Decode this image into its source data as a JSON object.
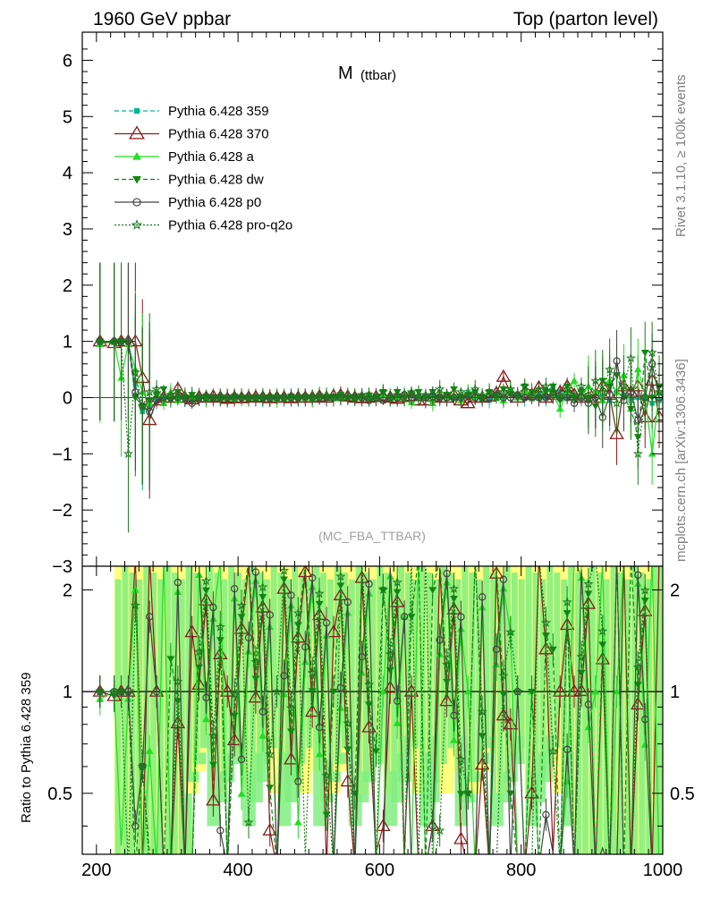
{
  "header": {
    "left": "1960 GeV ppbar",
    "right": "Top (parton level)"
  },
  "side_labels": {
    "rivet": "Rivet 3.1.10, ≥ 100k events",
    "mcplots": "mcplots.cern.ch [arXiv:1306.3436]"
  },
  "chart_data": {
    "type": "line",
    "title": "M",
    "title_sub": "(ttbar)",
    "analysis": "(MC_FBA_TTBAR)",
    "ratio_ylabel": "Ratio to Pythia 6.428 359",
    "xlim": [
      180,
      1000
    ],
    "ylim": [
      -3,
      6.5
    ],
    "ratio_ylim": [
      0.33,
      2.35
    ],
    "x_ticks": [
      "200",
      "400",
      "600",
      "800",
      "1000"
    ],
    "y_ticks": [
      "−3",
      "−2",
      "−1",
      "0",
      "1",
      "2",
      "3",
      "4",
      "5",
      "6"
    ],
    "ratio_ticks": [
      "0.5",
      "1",
      "2"
    ],
    "colors": {
      "359": "#00b894",
      "370": "#8b1a1a",
      "a": "#22dd22",
      "dw": "#118811",
      "p0": "#444444",
      "pro_q2o": "#1a7a1a",
      "band_yellow": "#ffff80",
      "band_green": "#80ee80"
    },
    "series": [
      {
        "name": "Pythia 6.428 359",
        "x": [
          205,
          225,
          235,
          245,
          255,
          265,
          275,
          285,
          295,
          305,
          315,
          325,
          335,
          345,
          355,
          365,
          375,
          385,
          395,
          405,
          415,
          425,
          435,
          445,
          455,
          465,
          475,
          485,
          495,
          505,
          515,
          525,
          535,
          545,
          555,
          565,
          575,
          585,
          595,
          605,
          615,
          625,
          635,
          645,
          655,
          665,
          675,
          685,
          695,
          705,
          715,
          725,
          735,
          745,
          755,
          765,
          775,
          785,
          795,
          805,
          815,
          825,
          835,
          845,
          855,
          865,
          875,
          885,
          895,
          905,
          915,
          925,
          935,
          945,
          955,
          965,
          975,
          985,
          995
        ],
        "y": [
          1.0,
          1.0,
          1.0,
          1.0,
          0.25,
          -0.25,
          -0.15,
          -0.05,
          -0.02,
          -0.04,
          0.0,
          -0.05,
          -0.02,
          0.0,
          -0.01,
          0.0,
          -0.01,
          -0.02,
          0.0,
          0.0,
          0.0,
          0.01,
          -0.01,
          0.0,
          0.02,
          -0.01,
          0.0,
          0.0,
          0.0,
          0.01,
          0.0,
          0.01,
          0.02,
          0.0,
          0.0,
          0.02,
          0.0,
          0.0,
          0.03,
          0.05,
          0.0,
          0.0,
          0.03,
          0.03,
          0.02,
          0.02,
          0.05,
          0.0,
          0.0,
          0.0,
          0.0,
          0.1,
          0.02,
          0.0,
          -0.05,
          0.0,
          0.0,
          0.1,
          0.05,
          -0.02,
          0.1,
          0.05,
          0.0,
          0.15,
          0.1,
          0.0,
          0.05,
          0.0,
          0.0,
          0.1,
          0.0,
          -0.05,
          0.1,
          0.05,
          -0.05,
          0.0,
          0.0,
          -0.1,
          -0.05
        ]
      },
      {
        "name": "Pythia 6.428 370",
        "x": [
          205,
          225,
          235,
          245,
          255,
          265,
          275,
          285,
          295,
          305,
          315,
          325,
          335,
          345,
          355,
          365,
          375,
          385,
          395,
          405,
          415,
          425,
          435,
          445,
          455,
          465,
          475,
          485,
          495,
          505,
          515,
          525,
          535,
          545,
          555,
          565,
          575,
          585,
          595,
          605,
          615,
          625,
          635,
          645,
          655,
          665,
          675,
          685,
          695,
          705,
          715,
          725,
          735,
          745,
          755,
          765,
          775,
          785,
          795,
          805,
          815,
          825,
          835,
          845,
          855,
          865,
          875,
          885,
          895,
          905,
          915,
          925,
          935,
          945,
          955,
          965,
          975,
          985,
          995
        ],
        "y": [
          1.0,
          0.97,
          1.0,
          1.0,
          1.0,
          0.35,
          -0.4,
          -0.05,
          0.0,
          0.0,
          0.15,
          0.0,
          -0.03,
          0.01,
          0.0,
          0.02,
          0.0,
          -0.02,
          0.0,
          -0.01,
          0.0,
          0.01,
          0.0,
          -0.01,
          0.0,
          0.0,
          -0.01,
          0.0,
          0.0,
          0.0,
          0.02,
          0.0,
          0.03,
          0.04,
          0.02,
          0.0,
          -0.01,
          0.0,
          0.01,
          0.02,
          0.0,
          -0.02,
          0.01,
          0.03,
          -0.05,
          -0.05,
          0.02,
          0.0,
          0.0,
          0.05,
          -0.05,
          -0.1,
          0.0,
          0.0,
          0.02,
          0.08,
          0.37,
          0.08,
          0.0,
          0.05,
          0.05,
          0.18,
          0.0,
          0.05,
          0.1,
          0.2,
          0.05,
          0.0,
          0.1,
          0.0,
          0.2,
          0.05,
          -0.65,
          0.2,
          0.1,
          0.2,
          -0.35,
          0.3,
          -0.35
        ]
      },
      {
        "name": "Pythia 6.428 a",
        "x": [
          205,
          225,
          235,
          245,
          255,
          265,
          275,
          285,
          295,
          305,
          315,
          325,
          335,
          345,
          355,
          365,
          375,
          385,
          395,
          405,
          415,
          425,
          435,
          445,
          455,
          465,
          475,
          485,
          495,
          505,
          515,
          525,
          535,
          545,
          555,
          565,
          575,
          585,
          595,
          605,
          615,
          625,
          635,
          645,
          655,
          665,
          675,
          685,
          695,
          705,
          715,
          725,
          735,
          745,
          755,
          765,
          775,
          785,
          795,
          805,
          815,
          825,
          835,
          845,
          855,
          865,
          875,
          885,
          895,
          905,
          915,
          925,
          935,
          945,
          955,
          965,
          975,
          985,
          995
        ],
        "y": [
          0.95,
          1.0,
          0.35,
          0.95,
          0.5,
          0.1,
          -0.1,
          0.1,
          -0.1,
          0.1,
          -0.05,
          0.05,
          0.0,
          0.03,
          -0.02,
          0.0,
          0.02,
          0.0,
          -0.02,
          0.01,
          0.0,
          -0.01,
          0.02,
          0.0,
          -0.02,
          0.0,
          0.01,
          0.02,
          0.0,
          -0.02,
          0.02,
          0.05,
          0.0,
          0.0,
          0.03,
          0.0,
          0.0,
          0.04,
          0.0,
          0.05,
          0.0,
          0.0,
          0.05,
          -0.08,
          0.05,
          0.0,
          -0.1,
          0.05,
          0.0,
          0.05,
          -0.05,
          0.1,
          0.0,
          0.05,
          0.1,
          0.0,
          -0.05,
          0.15,
          0.0,
          0.1,
          0.1,
          0.0,
          0.15,
          0.05,
          -0.2,
          0.1,
          0.3,
          0.0,
          0.2,
          0.1,
          -0.05,
          0.3,
          0.1,
          0.4,
          -0.2,
          0.5,
          0.05,
          -1.0,
          0.1
        ]
      },
      {
        "name": "Pythia 6.428 dw",
        "x": [
          205,
          225,
          235,
          245,
          255,
          265,
          275,
          285,
          295,
          305,
          315,
          325,
          335,
          345,
          355,
          365,
          375,
          385,
          395,
          405,
          415,
          425,
          435,
          445,
          455,
          465,
          475,
          485,
          495,
          505,
          515,
          525,
          535,
          545,
          555,
          565,
          575,
          585,
          595,
          605,
          615,
          625,
          635,
          645,
          655,
          665,
          675,
          685,
          695,
          705,
          715,
          725,
          735,
          745,
          755,
          765,
          775,
          785,
          795,
          805,
          815,
          825,
          835,
          845,
          855,
          865,
          875,
          885,
          895,
          905,
          915,
          925,
          935,
          945,
          955,
          965,
          975,
          985,
          995
        ],
        "y": [
          1.0,
          0.97,
          1.0,
          0.98,
          0.0,
          -0.15,
          -0.05,
          0.05,
          0.15,
          -0.05,
          0.1,
          0.0,
          0.05,
          0.0,
          0.02,
          0.0,
          0.01,
          0.0,
          0.02,
          0.0,
          0.0,
          0.01,
          0.0,
          0.01,
          0.0,
          0.0,
          0.02,
          0.0,
          0.01,
          0.0,
          0.03,
          0.0,
          0.02,
          0.05,
          0.0,
          0.01,
          0.0,
          0.04,
          0.02,
          0.1,
          0.0,
          0.1,
          0.0,
          0.05,
          0.1,
          0.0,
          0.1,
          0.0,
          0.05,
          0.15,
          0.0,
          0.05,
          0.1,
          0.0,
          0.1,
          0.05,
          0.15,
          0.05,
          0.0,
          0.2,
          0.1,
          0.0,
          0.1,
          0.2,
          -0.05,
          0.2,
          0.0,
          0.1,
          0.0,
          -0.15,
          0.3,
          0.2,
          0.4,
          0.0,
          -0.2,
          -0.7,
          0.8,
          0.0,
          0.2
        ]
      },
      {
        "name": "Pythia 6.428 p0",
        "x": [
          205,
          225,
          235,
          245,
          255,
          265,
          275,
          285,
          295,
          305,
          315,
          325,
          335,
          345,
          355,
          365,
          375,
          385,
          395,
          405,
          415,
          425,
          435,
          445,
          455,
          465,
          475,
          485,
          495,
          505,
          515,
          525,
          535,
          545,
          555,
          565,
          575,
          585,
          595,
          605,
          615,
          625,
          635,
          645,
          655,
          665,
          675,
          685,
          695,
          705,
          715,
          725,
          735,
          745,
          755,
          765,
          775,
          785,
          795,
          805,
          815,
          825,
          835,
          845,
          855,
          865,
          875,
          885,
          895,
          905,
          915,
          925,
          935,
          945,
          955,
          965,
          975,
          985,
          995
        ],
        "y": [
          1.0,
          1.0,
          1.0,
          1.0,
          0.1,
          -0.15,
          -0.25,
          -0.05,
          0.0,
          0.0,
          0.0,
          0.0,
          -0.1,
          0.0,
          0.0,
          0.0,
          0.0,
          0.0,
          0.01,
          0.0,
          0.0,
          0.0,
          0.0,
          -0.01,
          0.0,
          0.01,
          0.0,
          0.0,
          0.02,
          0.0,
          0.01,
          0.0,
          0.0,
          0.0,
          0.03,
          0.0,
          0.0,
          -0.05,
          0.0,
          -0.05,
          0.0,
          0.0,
          0.05,
          0.0,
          0.0,
          0.0,
          0.02,
          0.0,
          0.0,
          0.0,
          0.0,
          0.02,
          0.0,
          0.0,
          0.0,
          0.05,
          0.0,
          0.0,
          0.05,
          0.0,
          0.0,
          0.0,
          0.0,
          0.05,
          0.0,
          0.0,
          -0.1,
          0.0,
          -0.1,
          0.0,
          -0.35,
          0.05,
          0.65,
          -0.05,
          0.1,
          -0.4,
          0.0,
          0.6,
          0.0
        ]
      },
      {
        "name": "Pythia 6.428 pro-q2o",
        "x": [
          205,
          225,
          235,
          245,
          255,
          265,
          275,
          285,
          295,
          305,
          315,
          325,
          335,
          345,
          355,
          365,
          375,
          385,
          395,
          405,
          415,
          425,
          435,
          445,
          455,
          465,
          475,
          485,
          495,
          505,
          515,
          525,
          535,
          545,
          555,
          565,
          575,
          585,
          595,
          605,
          615,
          625,
          635,
          645,
          655,
          665,
          675,
          685,
          695,
          705,
          715,
          725,
          735,
          745,
          755,
          765,
          775,
          785,
          795,
          805,
          815,
          825,
          835,
          845,
          855,
          865,
          875,
          885,
          895,
          905,
          915,
          925,
          935,
          945,
          955,
          965,
          975,
          985,
          995
        ],
        "y": [
          1.0,
          1.0,
          1.0,
          -1.0,
          0.45,
          -0.15,
          0.1,
          0.15,
          0.0,
          0.05,
          0.0,
          0.02,
          0.0,
          0.01,
          0.0,
          0.0,
          0.01,
          0.0,
          0.0,
          0.02,
          0.0,
          0.0,
          0.01,
          0.0,
          0.02,
          0.0,
          0.0,
          0.01,
          0.02,
          0.0,
          0.0,
          0.03,
          0.0,
          0.0,
          0.02,
          0.0,
          0.05,
          0.0,
          0.0,
          0.1,
          0.0,
          0.05,
          0.0,
          0.1,
          0.0,
          0.05,
          0.0,
          0.15,
          0.05,
          0.0,
          0.1,
          0.05,
          0.15,
          0.0,
          0.1,
          0.0,
          0.1,
          0.15,
          0.05,
          0.2,
          0.0,
          0.15,
          0.2,
          0.1,
          0.0,
          0.15,
          0.0,
          0.2,
          0.0,
          0.3,
          0.1,
          0.5,
          -0.1,
          0.2,
          0.7,
          -1.0,
          0.0,
          0.8,
          0.1
        ]
      }
    ]
  }
}
